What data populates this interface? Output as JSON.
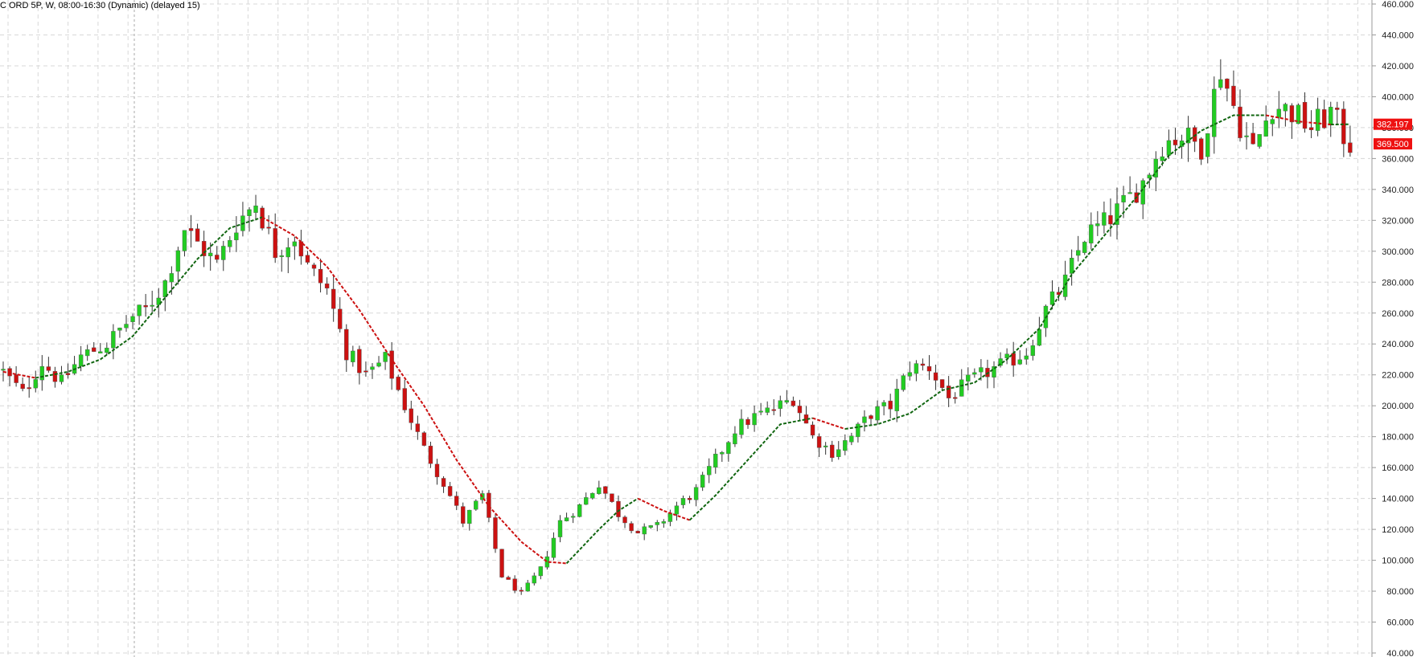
{
  "header": {
    "title": "C ORD 5P, W, 08:00-16:30 (Dynamic) (delayed 15)"
  },
  "colors": {
    "up": "#22cc22",
    "down": "#cc1111",
    "wick": "#333333",
    "grid": "#d8d8d8",
    "ma_up": "#116611",
    "ma_down": "#cc1111",
    "price_tag": "#ee1111"
  },
  "chart_data": {
    "type": "candlestick",
    "title": "C ORD 5P, W, 08:00-16:30 (Dynamic) (delayed 15)",
    "xlabel": "",
    "ylabel": "",
    "ylim": [
      40,
      460
    ],
    "y_ticks": [
      "40.000",
      "60.000",
      "80.000",
      "100.000",
      "120.000",
      "140.000",
      "160.000",
      "180.000",
      "200.000",
      "220.000",
      "240.000",
      "260.000",
      "280.000",
      "300.000",
      "320.000",
      "340.000",
      "360.000",
      "380.000",
      "400.000",
      "420.000",
      "440.000",
      "460.000"
    ],
    "grid": true,
    "x_range": [
      0,
      210
    ],
    "close_anchors": [
      [
        0,
        222
      ],
      [
        3,
        208
      ],
      [
        6,
        228
      ],
      [
        9,
        215
      ],
      [
        12,
        232
      ],
      [
        16,
        240
      ],
      [
        20,
        258
      ],
      [
        22,
        262
      ],
      [
        25,
        280
      ],
      [
        28,
        315
      ],
      [
        30,
        305
      ],
      [
        33,
        292
      ],
      [
        36,
        318
      ],
      [
        39,
        332
      ],
      [
        42,
        300
      ],
      [
        45,
        310
      ],
      [
        47,
        290
      ],
      [
        50,
        275
      ],
      [
        53,
        235
      ],
      [
        56,
        220
      ],
      [
        59,
        230
      ],
      [
        62,
        200
      ],
      [
        65,
        172
      ],
      [
        68,
        150
      ],
      [
        71,
        125
      ],
      [
        74,
        142
      ],
      [
        77,
        90
      ],
      [
        80,
        78
      ],
      [
        83,
        94
      ],
      [
        86,
        125
      ],
      [
        89,
        135
      ],
      [
        92,
        150
      ],
      [
        95,
        130
      ],
      [
        98,
        118
      ],
      [
        101,
        122
      ],
      [
        104,
        135
      ],
      [
        107,
        145
      ],
      [
        110,
        165
      ],
      [
        113,
        185
      ],
      [
        116,
        193
      ],
      [
        119,
        198
      ],
      [
        122,
        205
      ],
      [
        125,
        180
      ],
      [
        128,
        170
      ],
      [
        131,
        180
      ],
      [
        134,
        195
      ],
      [
        137,
        200
      ],
      [
        140,
        225
      ],
      [
        143,
        225
      ],
      [
        146,
        205
      ],
      [
        149,
        215
      ],
      [
        152,
        222
      ],
      [
        155,
        228
      ],
      [
        158,
        235
      ],
      [
        161,
        262
      ],
      [
        164,
        280
      ],
      [
        167,
        310
      ],
      [
        170,
        318
      ],
      [
        173,
        330
      ],
      [
        176,
        345
      ],
      [
        179,
        370
      ],
      [
        182,
        375
      ],
      [
        185,
        368
      ],
      [
        188,
        418
      ],
      [
        191,
        382
      ],
      [
        193,
        365
      ],
      [
        196,
        395
      ],
      [
        199,
        390
      ],
      [
        202,
        380
      ],
      [
        205,
        390
      ],
      [
        207,
        375
      ],
      [
        208,
        369.5
      ]
    ],
    "moving_average": {
      "label": "",
      "anchors": [
        [
          0,
          222
        ],
        [
          5,
          218
        ],
        [
          10,
          222
        ],
        [
          15,
          230
        ],
        [
          20,
          245
        ],
        [
          25,
          270
        ],
        [
          30,
          295
        ],
        [
          35,
          315
        ],
        [
          40,
          322
        ],
        [
          45,
          310
        ],
        [
          50,
          290
        ],
        [
          55,
          262
        ],
        [
          60,
          230
        ],
        [
          65,
          200
        ],
        [
          70,
          165
        ],
        [
          75,
          135
        ],
        [
          80,
          112
        ],
        [
          84,
          99
        ],
        [
          87,
          98
        ],
        [
          92,
          120
        ],
        [
          95,
          132
        ],
        [
          98,
          140
        ],
        [
          102,
          132
        ],
        [
          106,
          126
        ],
        [
          110,
          142
        ],
        [
          115,
          165
        ],
        [
          120,
          188
        ],
        [
          125,
          192
        ],
        [
          130,
          185
        ],
        [
          135,
          188
        ],
        [
          140,
          195
        ],
        [
          145,
          210
        ],
        [
          150,
          215
        ],
        [
          155,
          230
        ],
        [
          160,
          250
        ],
        [
          165,
          285
        ],
        [
          170,
          310
        ],
        [
          175,
          335
        ],
        [
          180,
          362
        ],
        [
          185,
          378
        ],
        [
          190,
          388
        ],
        [
          195,
          388
        ],
        [
          200,
          384
        ],
        [
          205,
          382
        ],
        [
          208,
          382.2
        ]
      ]
    },
    "price_tags": [
      "382.197",
      "369.500"
    ],
    "price_tag_values": [
      382.197,
      369.5
    ]
  }
}
